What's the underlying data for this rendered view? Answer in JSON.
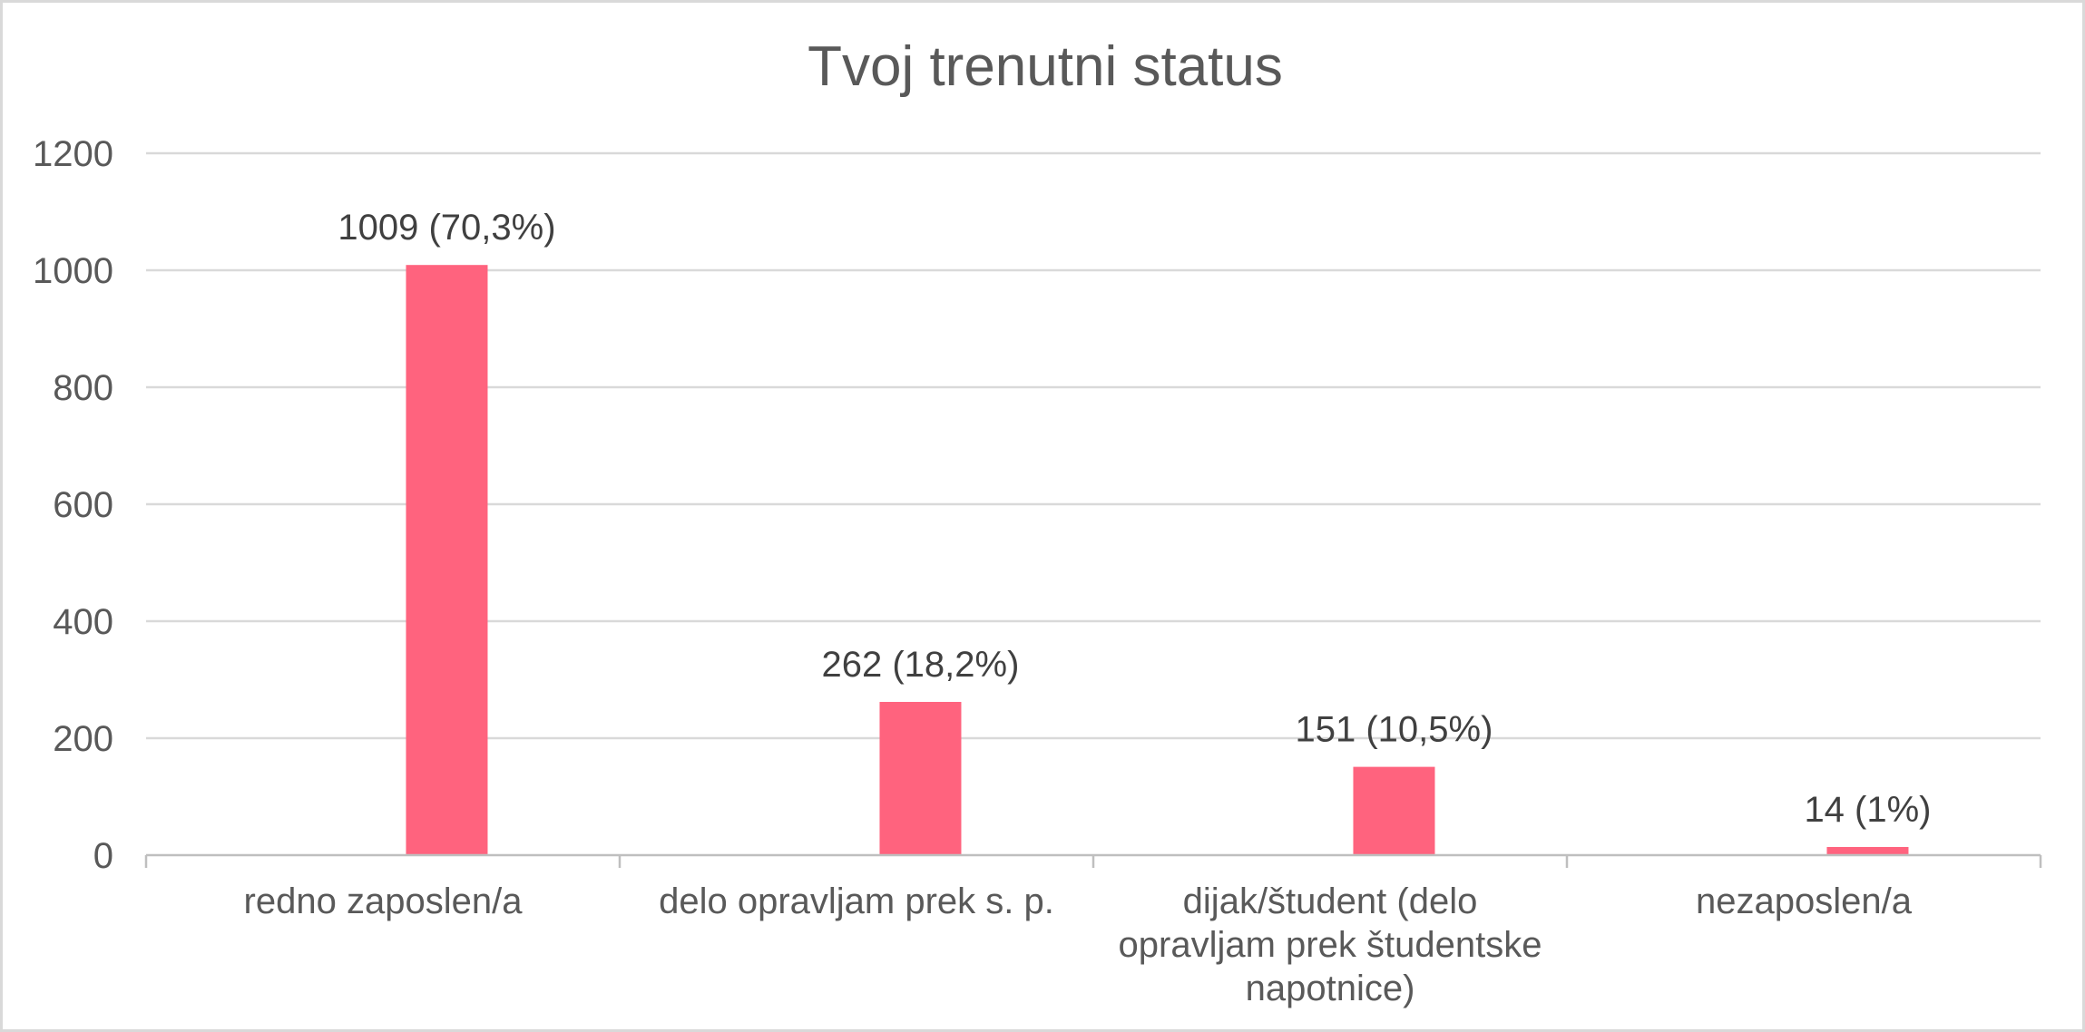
{
  "chart_data": {
    "type": "bar",
    "title": "Tvoj trenutni status",
    "categories": [
      [
        "redno zaposlen/a"
      ],
      [
        "delo opravljam prek s. p."
      ],
      [
        "dijak/študent (delo",
        "opravljam prek študentske",
        "napotnice)"
      ],
      [
        "nezaposlen/a"
      ]
    ],
    "series": [
      {
        "values": [
          1009,
          262,
          151,
          14
        ],
        "color": "#ff637e"
      }
    ],
    "data_labels": [
      "1009 (70,3%)",
      "262 (18,2%)",
      "151 (10,5%)",
      "14 (1%)"
    ],
    "y_ticks": [
      "0",
      "200",
      "400",
      "600",
      "800",
      "1000",
      "1200"
    ],
    "ylim": [
      0,
      1200
    ],
    "xlabel": "",
    "ylabel": "",
    "grid": true,
    "legend": "none"
  }
}
